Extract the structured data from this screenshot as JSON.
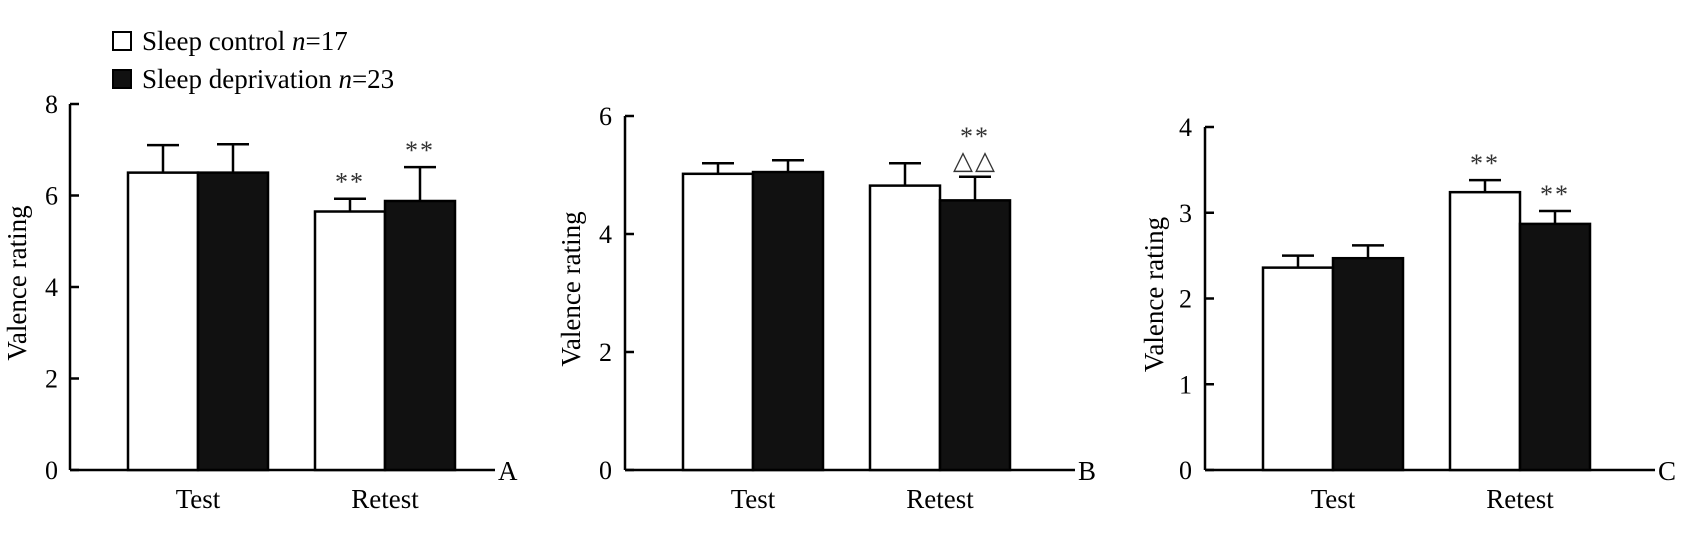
{
  "legend": {
    "entries": [
      {
        "label": "Sleep control",
        "n_label": "n",
        "n_value": "=17",
        "fill": "open"
      },
      {
        "label": "Sleep deprivation",
        "n_label": "n",
        "n_value": "=23",
        "fill": "filled"
      }
    ]
  },
  "colors": {
    "control": "#ffffff",
    "deprivation": "#111111",
    "axis": "#000000",
    "marker": "#333333"
  },
  "chart_data": [
    {
      "type": "bar",
      "panel_label": "A",
      "ylabel": "Valence rating",
      "ylim": [
        0,
        8
      ],
      "yticks": [
        "0",
        "2",
        "4",
        "6",
        "8"
      ],
      "categories": [
        "Test",
        "Retest"
      ],
      "series": [
        {
          "name": "Sleep control",
          "values": [
            6.5,
            5.65
          ],
          "errors": [
            0.6,
            0.28
          ]
        },
        {
          "name": "Sleep deprivation",
          "values": [
            6.5,
            5.88
          ],
          "errors": [
            0.62,
            0.74
          ]
        }
      ],
      "annotations": [
        {
          "category": "Retest",
          "series": 0,
          "text": "**"
        },
        {
          "category": "Retest",
          "series": 1,
          "text": "**"
        }
      ]
    },
    {
      "type": "bar",
      "panel_label": "B",
      "ylabel": "Valence rating",
      "ylim": [
        0,
        6
      ],
      "yticks": [
        "0",
        "2",
        "4",
        "6"
      ],
      "categories": [
        "Test",
        "Retest"
      ],
      "series": [
        {
          "name": "Sleep control",
          "values": [
            5.02,
            4.82
          ],
          "errors": [
            0.18,
            0.38
          ]
        },
        {
          "name": "Sleep deprivation",
          "values": [
            5.05,
            4.57
          ],
          "errors": [
            0.2,
            0.4
          ]
        }
      ],
      "annotations": [
        {
          "category": "Retest",
          "series": 1,
          "text": "**"
        },
        {
          "category": "Retest",
          "series": 1,
          "text": "△△"
        }
      ]
    },
    {
      "type": "bar",
      "panel_label": "C",
      "ylabel": "Valence rating",
      "ylim": [
        0,
        4
      ],
      "yticks": [
        "0",
        "1",
        "2",
        "3",
        "4"
      ],
      "categories": [
        "Test",
        "Retest"
      ],
      "series": [
        {
          "name": "Sleep control",
          "values": [
            2.36,
            3.24
          ],
          "errors": [
            0.14,
            0.14
          ]
        },
        {
          "name": "Sleep deprivation",
          "values": [
            2.47,
            2.87
          ],
          "errors": [
            0.15,
            0.15
          ]
        }
      ],
      "annotations": [
        {
          "category": "Retest",
          "series": 0,
          "text": "**"
        },
        {
          "category": "Retest",
          "series": 1,
          "text": "**"
        }
      ]
    }
  ]
}
